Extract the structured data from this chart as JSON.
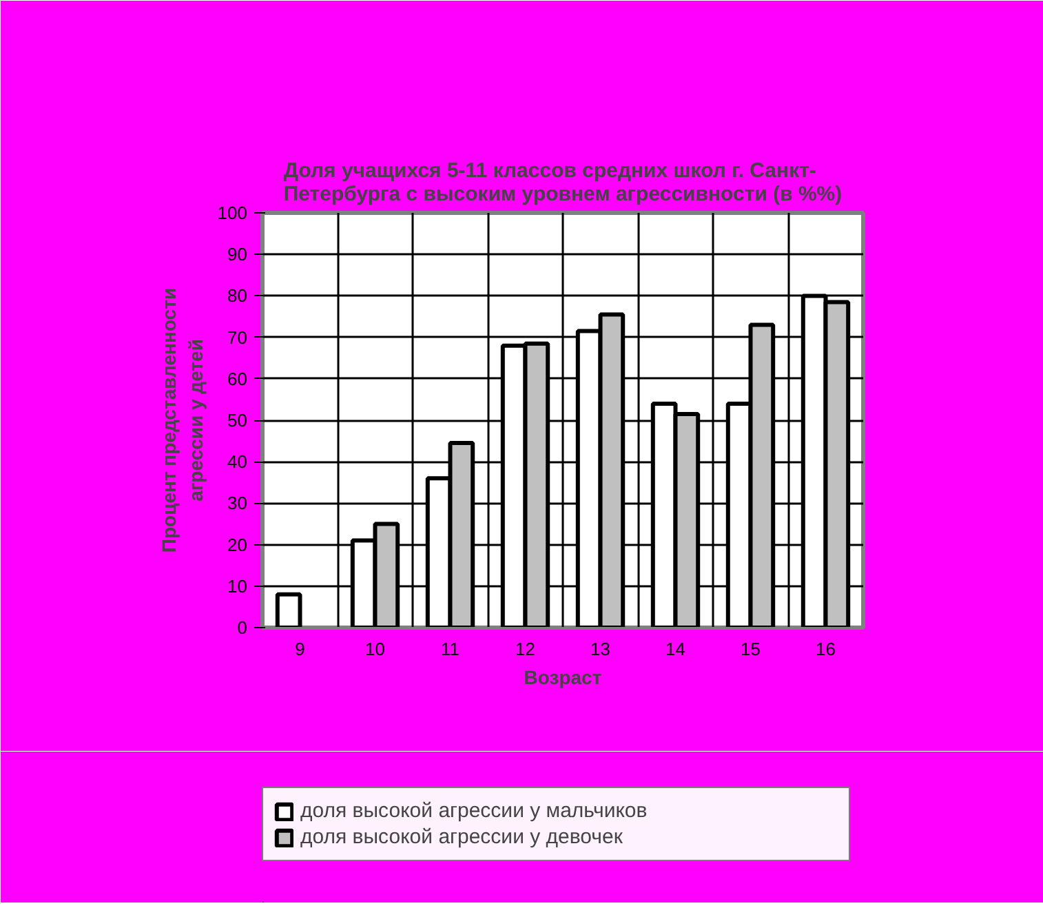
{
  "chart_data": {
    "type": "bar",
    "title": "Доля учащихся 5-11 классов средних школ г. Санкт-Петербурга с высоким уровнем агрессивности (в %%)",
    "xlabel": "Возраст",
    "ylabel": "Процент представленности агрессии у детей",
    "categories": [
      "9",
      "10",
      "11",
      "12",
      "13",
      "14",
      "15",
      "16"
    ],
    "series": [
      {
        "name": "доля высокой агрессии у мальчиков",
        "color": "#ffffff",
        "values": [
          8,
          21,
          36,
          68,
          71.5,
          54,
          54,
          80
        ]
      },
      {
        "name": "доля высокой агрессии у девочек",
        "color": "#c0c0c0",
        "values": [
          null,
          25,
          44.5,
          68.5,
          75.5,
          51.5,
          73,
          78.5
        ]
      }
    ],
    "ylim": [
      0,
      100
    ],
    "yticks": [
      0,
      10,
      20,
      30,
      40,
      50,
      60,
      70,
      80,
      90,
      100
    ],
    "grid": true,
    "legend": "bottom"
  }
}
